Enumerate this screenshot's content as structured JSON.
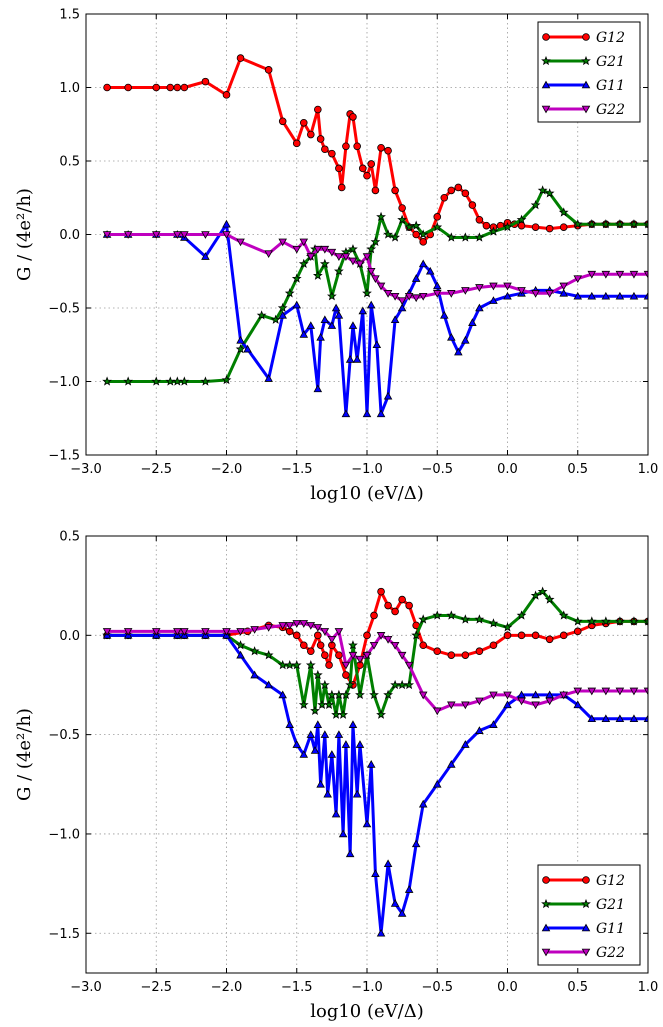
{
  "chart_data": [
    {
      "type": "line",
      "xlabel": "log10 (eV/Δ)",
      "ylabel": "G / (4e²/h)",
      "xlim": [
        -3.0,
        1.0
      ],
      "ylim": [
        -1.5,
        1.5
      ],
      "xticks": [
        "−3.0",
        "−2.5",
        "−2.0",
        "−1.5",
        "−1.0",
        "−0.5",
        "0.0",
        "0.5",
        "1.0"
      ],
      "yticks": [
        "−1.5",
        "−1.0",
        "−0.5",
        "0.0",
        "0.5",
        "1.0",
        "1.5"
      ],
      "grid": true,
      "legend_position": "top-right",
      "series": [
        {
          "name": "G12",
          "color": "#ff0000",
          "marker": "circle",
          "x": [
            -2.85,
            -2.7,
            -2.5,
            -2.4,
            -2.35,
            -2.3,
            -2.15,
            -2.0,
            -1.9,
            -1.7,
            -1.6,
            -1.5,
            -1.45,
            -1.4,
            -1.35,
            -1.33,
            -1.3,
            -1.25,
            -1.2,
            -1.18,
            -1.15,
            -1.12,
            -1.1,
            -1.07,
            -1.03,
            -1.0,
            -0.97,
            -0.94,
            -0.9,
            -0.85,
            -0.8,
            -0.75,
            -0.7,
            -0.65,
            -0.6,
            -0.55,
            -0.5,
            -0.45,
            -0.4,
            -0.35,
            -0.3,
            -0.25,
            -0.2,
            -0.15,
            -0.1,
            -0.05,
            0.0,
            0.05,
            0.1,
            0.2,
            0.3,
            0.4,
            0.5,
            0.6,
            0.7,
            0.8,
            0.9,
            1.0
          ],
          "y": [
            1.0,
            1.0,
            1.0,
            1.0,
            1.0,
            1.0,
            1.04,
            0.95,
            1.2,
            1.12,
            0.77,
            0.62,
            0.76,
            0.68,
            0.85,
            0.65,
            0.58,
            0.55,
            0.45,
            0.32,
            0.6,
            0.82,
            0.8,
            0.6,
            0.45,
            0.4,
            0.48,
            0.3,
            0.59,
            0.57,
            0.3,
            0.18,
            0.05,
            0.0,
            -0.05,
            0.0,
            0.12,
            0.25,
            0.3,
            0.32,
            0.28,
            0.2,
            0.1,
            0.06,
            0.05,
            0.06,
            0.08,
            0.07,
            0.06,
            0.05,
            0.04,
            0.05,
            0.06,
            0.07,
            0.07,
            0.07,
            0.07,
            0.07
          ]
        },
        {
          "name": "G21",
          "color": "#007f00",
          "marker": "star",
          "x": [
            -2.85,
            -2.7,
            -2.5,
            -2.4,
            -2.35,
            -2.3,
            -2.15,
            -2.0,
            -1.9,
            -1.75,
            -1.65,
            -1.6,
            -1.55,
            -1.5,
            -1.45,
            -1.4,
            -1.37,
            -1.35,
            -1.3,
            -1.25,
            -1.2,
            -1.15,
            -1.1,
            -1.05,
            -1.0,
            -0.97,
            -0.94,
            -0.9,
            -0.85,
            -0.8,
            -0.75,
            -0.7,
            -0.65,
            -0.6,
            -0.5,
            -0.4,
            -0.3,
            -0.2,
            -0.1,
            0.0,
            0.1,
            0.2,
            0.25,
            0.3,
            0.4,
            0.5,
            0.6,
            0.7,
            0.8,
            0.9,
            1.0
          ],
          "y": [
            -1.0,
            -1.0,
            -1.0,
            -1.0,
            -1.0,
            -1.0,
            -1.0,
            -0.99,
            -0.78,
            -0.55,
            -0.58,
            -0.5,
            -0.4,
            -0.3,
            -0.2,
            -0.15,
            -0.1,
            -0.28,
            -0.2,
            -0.42,
            -0.25,
            -0.12,
            -0.1,
            -0.2,
            -0.4,
            -0.1,
            -0.05,
            0.12,
            0.0,
            -0.02,
            0.1,
            0.05,
            0.06,
            0.0,
            0.05,
            -0.02,
            -0.02,
            -0.02,
            0.02,
            0.05,
            0.1,
            0.2,
            0.3,
            0.28,
            0.15,
            0.07,
            0.07,
            0.07,
            0.07,
            0.07,
            0.07
          ]
        },
        {
          "name": "G11",
          "color": "#0000ff",
          "marker": "triangle-up",
          "x": [
            -2.85,
            -2.7,
            -2.5,
            -2.35,
            -2.3,
            -2.15,
            -2.0,
            -1.9,
            -1.85,
            -1.7,
            -1.6,
            -1.5,
            -1.45,
            -1.4,
            -1.35,
            -1.33,
            -1.3,
            -1.25,
            -1.22,
            -1.2,
            -1.15,
            -1.12,
            -1.1,
            -1.07,
            -1.03,
            -1.0,
            -0.97,
            -0.93,
            -0.9,
            -0.85,
            -0.8,
            -0.75,
            -0.7,
            -0.65,
            -0.6,
            -0.55,
            -0.5,
            -0.45,
            -0.4,
            -0.35,
            -0.3,
            -0.25,
            -0.2,
            -0.1,
            0.0,
            0.1,
            0.2,
            0.3,
            0.4,
            0.5,
            0.6,
            0.7,
            0.8,
            0.9,
            1.0
          ],
          "y": [
            0.0,
            0.0,
            0.0,
            0.0,
            -0.02,
            -0.15,
            0.07,
            -0.72,
            -0.78,
            -0.98,
            -0.55,
            -0.48,
            -0.68,
            -0.62,
            -1.05,
            -0.7,
            -0.58,
            -0.62,
            -0.5,
            -0.55,
            -1.22,
            -0.85,
            -0.62,
            -0.85,
            -0.52,
            -1.22,
            -0.48,
            -0.75,
            -1.22,
            -1.1,
            -0.58,
            -0.5,
            -0.4,
            -0.3,
            -0.2,
            -0.25,
            -0.35,
            -0.55,
            -0.7,
            -0.8,
            -0.72,
            -0.6,
            -0.5,
            -0.45,
            -0.42,
            -0.4,
            -0.38,
            -0.38,
            -0.4,
            -0.42,
            -0.42,
            -0.42,
            -0.42,
            -0.42,
            -0.42
          ]
        },
        {
          "name": "G22",
          "color": "#bf00bf",
          "marker": "triangle-down",
          "x": [
            -2.85,
            -2.7,
            -2.5,
            -2.35,
            -2.3,
            -2.15,
            -2.0,
            -1.9,
            -1.7,
            -1.6,
            -1.5,
            -1.45,
            -1.4,
            -1.35,
            -1.3,
            -1.25,
            -1.2,
            -1.15,
            -1.1,
            -1.05,
            -1.0,
            -0.97,
            -0.94,
            -0.9,
            -0.85,
            -0.8,
            -0.75,
            -0.7,
            -0.65,
            -0.6,
            -0.5,
            -0.4,
            -0.3,
            -0.2,
            -0.1,
            0.0,
            0.1,
            0.2,
            0.3,
            0.4,
            0.5,
            0.6,
            0.7,
            0.8,
            0.9,
            1.0
          ],
          "y": [
            0.0,
            0.0,
            0.0,
            0.0,
            0.0,
            0.0,
            0.0,
            -0.05,
            -0.13,
            -0.05,
            -0.1,
            -0.05,
            -0.15,
            -0.1,
            -0.1,
            -0.12,
            -0.15,
            -0.15,
            -0.18,
            -0.2,
            -0.15,
            -0.25,
            -0.3,
            -0.35,
            -0.4,
            -0.42,
            -0.45,
            -0.42,
            -0.43,
            -0.42,
            -0.4,
            -0.4,
            -0.38,
            -0.36,
            -0.35,
            -0.35,
            -0.38,
            -0.4,
            -0.4,
            -0.35,
            -0.3,
            -0.27,
            -0.27,
            -0.27,
            -0.27,
            -0.27
          ]
        }
      ]
    },
    {
      "type": "line",
      "xlabel": "log10 (eV/Δ)",
      "ylabel": "G / (4e²/h)",
      "xlim": [
        -3.0,
        1.0
      ],
      "ylim": [
        -1.7,
        0.5
      ],
      "xticks": [
        "−3.0",
        "−2.5",
        "−2.0",
        "−1.5",
        "−1.0",
        "−0.5",
        "0.0",
        "0.5",
        "1.0"
      ],
      "yticks": [
        "−1.5",
        "−1.0",
        "−0.5",
        "0.0",
        "0.5"
      ],
      "grid": true,
      "legend_position": "bottom-right",
      "series": [
        {
          "name": "G12",
          "color": "#ff0000",
          "marker": "circle",
          "x": [
            -2.85,
            -2.7,
            -2.5,
            -2.35,
            -2.3,
            -2.15,
            -2.0,
            -1.85,
            -1.7,
            -1.6,
            -1.55,
            -1.5,
            -1.45,
            -1.4,
            -1.35,
            -1.33,
            -1.3,
            -1.27,
            -1.25,
            -1.2,
            -1.15,
            -1.1,
            -1.05,
            -1.0,
            -0.95,
            -0.9,
            -0.85,
            -0.8,
            -0.75,
            -0.7,
            -0.65,
            -0.6,
            -0.5,
            -0.4,
            -0.3,
            -0.2,
            -0.1,
            0.0,
            0.1,
            0.2,
            0.3,
            0.4,
            0.5,
            0.6,
            0.7,
            0.8,
            0.9,
            1.0
          ],
          "y": [
            0.0,
            0.0,
            0.0,
            0.0,
            0.0,
            0.0,
            0.0,
            0.02,
            0.05,
            0.04,
            0.02,
            0.0,
            -0.05,
            -0.08,
            0.0,
            -0.05,
            -0.1,
            -0.15,
            -0.05,
            -0.1,
            -0.2,
            -0.25,
            -0.15,
            0.0,
            0.1,
            0.22,
            0.15,
            0.12,
            0.18,
            0.15,
            0.05,
            -0.05,
            -0.08,
            -0.1,
            -0.1,
            -0.08,
            -0.05,
            0.0,
            0.0,
            0.0,
            -0.02,
            0.0,
            0.02,
            0.05,
            0.06,
            0.07,
            0.07,
            0.07
          ]
        },
        {
          "name": "G21",
          "color": "#007f00",
          "marker": "star",
          "x": [
            -2.85,
            -2.7,
            -2.5,
            -2.35,
            -2.3,
            -2.15,
            -2.0,
            -1.9,
            -1.8,
            -1.7,
            -1.6,
            -1.55,
            -1.5,
            -1.45,
            -1.4,
            -1.37,
            -1.35,
            -1.32,
            -1.3,
            -1.27,
            -1.25,
            -1.22,
            -1.2,
            -1.17,
            -1.15,
            -1.12,
            -1.1,
            -1.05,
            -1.0,
            -0.95,
            -0.9,
            -0.85,
            -0.8,
            -0.75,
            -0.7,
            -0.65,
            -0.6,
            -0.5,
            -0.4,
            -0.3,
            -0.2,
            -0.1,
            0.0,
            0.1,
            0.2,
            0.25,
            0.3,
            0.4,
            0.5,
            0.6,
            0.7,
            0.8,
            0.9,
            1.0
          ],
          "y": [
            0.0,
            0.0,
            0.0,
            0.0,
            0.0,
            0.0,
            0.0,
            -0.05,
            -0.08,
            -0.1,
            -0.15,
            -0.15,
            -0.15,
            -0.35,
            -0.15,
            -0.38,
            -0.2,
            -0.35,
            -0.25,
            -0.35,
            -0.3,
            -0.4,
            -0.3,
            -0.4,
            -0.3,
            -0.25,
            -0.05,
            -0.3,
            -0.1,
            -0.3,
            -0.4,
            -0.3,
            -0.25,
            -0.25,
            -0.25,
            0.0,
            0.08,
            0.1,
            0.1,
            0.08,
            0.08,
            0.06,
            0.04,
            0.1,
            0.2,
            0.22,
            0.18,
            0.1,
            0.07,
            0.07,
            0.07,
            0.07,
            0.07,
            0.07
          ]
        },
        {
          "name": "G11",
          "color": "#0000ff",
          "marker": "triangle-up",
          "x": [
            -2.85,
            -2.7,
            -2.5,
            -2.35,
            -2.3,
            -2.15,
            -2.0,
            -1.9,
            -1.8,
            -1.7,
            -1.6,
            -1.55,
            -1.5,
            -1.45,
            -1.4,
            -1.37,
            -1.35,
            -1.33,
            -1.3,
            -1.28,
            -1.25,
            -1.22,
            -1.2,
            -1.17,
            -1.15,
            -1.12,
            -1.1,
            -1.07,
            -1.05,
            -1.0,
            -0.97,
            -0.94,
            -0.9,
            -0.85,
            -0.8,
            -0.75,
            -0.7,
            -0.65,
            -0.6,
            -0.5,
            -0.4,
            -0.3,
            -0.2,
            -0.1,
            0.0,
            0.1,
            0.2,
            0.3,
            0.4,
            0.5,
            0.6,
            0.7,
            0.8,
            0.9,
            1.0
          ],
          "y": [
            0.0,
            0.0,
            0.0,
            0.0,
            0.0,
            0.0,
            0.0,
            -0.1,
            -0.2,
            -0.25,
            -0.3,
            -0.45,
            -0.55,
            -0.6,
            -0.5,
            -0.58,
            -0.45,
            -0.75,
            -0.5,
            -0.8,
            -0.6,
            -0.9,
            -0.5,
            -1.0,
            -0.55,
            -1.1,
            -0.45,
            -0.8,
            -0.55,
            -0.95,
            -0.65,
            -1.2,
            -1.5,
            -1.15,
            -1.35,
            -1.4,
            -1.28,
            -1.05,
            -0.85,
            -0.75,
            -0.65,
            -0.55,
            -0.48,
            -0.45,
            -0.35,
            -0.3,
            -0.3,
            -0.3,
            -0.3,
            -0.35,
            -0.42,
            -0.42,
            -0.42,
            -0.42,
            -0.42
          ]
        },
        {
          "name": "G22",
          "color": "#bf00bf",
          "marker": "triangle-down",
          "x": [
            -2.85,
            -2.7,
            -2.5,
            -2.35,
            -2.3,
            -2.15,
            -2.0,
            -1.9,
            -1.8,
            -1.7,
            -1.6,
            -1.55,
            -1.5,
            -1.45,
            -1.4,
            -1.35,
            -1.3,
            -1.25,
            -1.2,
            -1.15,
            -1.1,
            -1.05,
            -1.0,
            -0.95,
            -0.9,
            -0.85,
            -0.8,
            -0.75,
            -0.7,
            -0.6,
            -0.5,
            -0.4,
            -0.3,
            -0.2,
            -0.1,
            0.0,
            0.1,
            0.2,
            0.3,
            0.4,
            0.5,
            0.6,
            0.7,
            0.8,
            0.9,
            1.0
          ],
          "y": [
            0.02,
            0.02,
            0.02,
            0.02,
            0.02,
            0.02,
            0.02,
            0.02,
            0.03,
            0.04,
            0.05,
            0.05,
            0.06,
            0.06,
            0.05,
            0.04,
            0.02,
            -0.02,
            0.02,
            -0.15,
            -0.1,
            -0.12,
            -0.1,
            -0.05,
            0.0,
            -0.02,
            -0.05,
            -0.1,
            -0.15,
            -0.3,
            -0.38,
            -0.35,
            -0.35,
            -0.33,
            -0.3,
            -0.3,
            -0.33,
            -0.35,
            -0.33,
            -0.3,
            -0.28,
            -0.28,
            -0.28,
            -0.28,
            -0.28,
            -0.28
          ]
        }
      ]
    }
  ]
}
